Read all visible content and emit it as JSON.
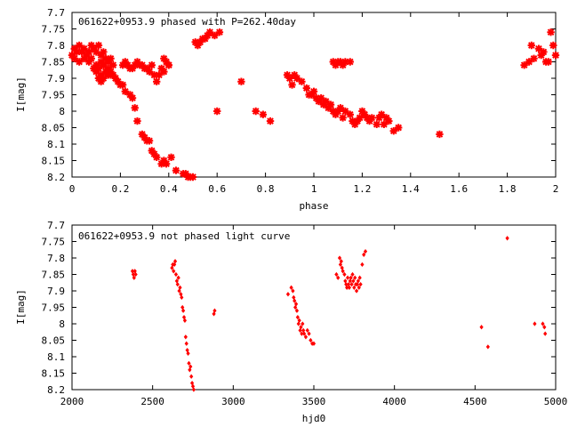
{
  "colors": {
    "points": "#ff0000",
    "axes": "#000000",
    "background": "#ffffff"
  },
  "chart_data": [
    {
      "type": "scatter",
      "title": "061622+0953.9 phased with P=262.40day",
      "xlabel": "phase",
      "ylabel": "I[mag]",
      "xlim": [
        0,
        2
      ],
      "ylim": [
        7.7,
        8.2
      ],
      "y_inverted": true,
      "grid": false,
      "marker": "star",
      "x_ticks": [
        "0",
        "0.2",
        "0.4",
        "0.6",
        "0.8",
        "1",
        "1.2",
        "1.4",
        "1.6",
        "1.8",
        "2"
      ],
      "y_ticks": [
        "7.7",
        "7.75",
        "7.8",
        "7.85",
        "7.9",
        "7.95",
        "8",
        "8.05",
        "8.1",
        "8.15",
        "8.2"
      ],
      "series": [
        {
          "x": [
            0.0,
            0.01,
            0.02,
            0.03,
            0.04,
            0.05,
            0.06,
            0.07,
            0.08,
            0.09,
            0.1,
            0.11,
            0.12,
            0.13,
            0.14,
            0.15,
            0.16,
            0.17,
            0.01,
            0.03,
            0.05,
            0.07,
            0.08,
            0.1,
            0.11,
            0.12,
            0.13,
            0.14,
            0.15,
            0.16,
            0.09,
            0.1,
            0.12,
            0.13,
            0.14,
            0.15,
            0.11,
            0.12,
            0.13,
            0.16,
            0.17,
            0.18,
            0.19,
            0.2,
            0.21,
            0.22,
            0.23,
            0.24,
            0.25,
            0.26,
            0.27,
            0.28,
            0.29,
            0.3,
            0.31,
            0.32,
            0.33,
            0.34,
            0.35,
            0.36,
            0.37,
            0.38,
            0.39,
            0.4,
            0.38,
            0.4,
            0.21,
            0.22,
            0.24,
            0.25,
            0.26,
            0.27,
            0.29,
            0.3,
            0.31,
            0.32,
            0.33,
            0.34,
            0.35,
            0.37,
            0.38,
            0.39,
            0.41,
            0.43,
            0.46,
            0.47,
            0.48,
            0.49,
            0.5,
            0.51,
            0.52,
            0.51,
            0.52,
            0.53,
            0.54,
            0.55,
            0.56,
            0.57,
            0.59,
            0.61,
            0.7,
            0.6,
            0.76,
            0.79,
            0.82,
            0.89,
            0.9,
            0.91,
            0.92,
            0.93,
            0.95,
            0.97,
            0.98,
            0.99,
            1.0,
            1.01,
            1.02,
            1.03,
            1.04,
            1.05,
            1.06,
            1.07,
            1.08,
            1.09,
            1.1,
            1.11,
            1.12,
            1.13,
            1.15,
            1.16,
            1.17,
            1.18,
            1.19,
            1.2,
            1.21,
            1.22,
            1.23,
            1.24,
            1.26,
            1.27,
            1.28,
            1.29,
            1.3,
            1.31,
            1.33,
            1.35,
            1.08,
            1.09,
            1.1,
            1.11,
            1.12,
            1.13,
            1.15,
            1.52,
            1.87,
            1.89,
            1.9,
            1.91,
            1.93,
            1.94,
            1.95,
            1.96,
            1.97,
            1.98,
            1.99,
            2.0
          ],
          "y": [
            7.83,
            7.81,
            7.82,
            7.8,
            7.82,
            7.81,
            7.83,
            7.82,
            7.8,
            7.81,
            7.82,
            7.8,
            7.83,
            7.82,
            7.84,
            7.85,
            7.84,
            7.86,
            7.84,
            7.85,
            7.84,
            7.85,
            7.84,
            7.86,
            7.87,
            7.85,
            7.86,
            7.88,
            7.87,
            7.89,
            7.87,
            7.88,
            7.89,
            7.9,
            7.88,
            7.89,
            7.9,
            7.91,
            7.86,
            7.88,
            7.89,
            7.9,
            7.91,
            7.92,
            7.86,
            7.85,
            7.86,
            7.87,
            7.87,
            7.86,
            7.85,
            7.86,
            7.86,
            7.87,
            7.87,
            7.88,
            7.86,
            7.89,
            7.91,
            7.89,
            7.87,
            7.88,
            7.85,
            7.86,
            7.84,
            7.86,
            7.92,
            7.94,
            7.95,
            7.96,
            7.99,
            8.03,
            8.07,
            8.08,
            8.09,
            8.09,
            8.12,
            8.13,
            8.14,
            8.16,
            8.15,
            8.16,
            8.14,
            8.18,
            8.19,
            8.19,
            8.2,
            8.2,
            8.2,
            8.21,
            8.21,
            7.79,
            7.8,
            7.79,
            7.78,
            7.78,
            7.77,
            7.76,
            7.77,
            7.76,
            7.91,
            8.0,
            8.0,
            8.01,
            8.03,
            7.89,
            7.9,
            7.92,
            7.89,
            7.9,
            7.91,
            7.93,
            7.95,
            7.95,
            7.94,
            7.96,
            7.97,
            7.96,
            7.98,
            7.97,
            7.99,
            7.98,
            8.0,
            8.01,
            8.0,
            7.99,
            8.02,
            8.0,
            8.01,
            8.03,
            8.04,
            8.03,
            8.02,
            8.0,
            8.01,
            8.02,
            8.03,
            8.02,
            8.04,
            8.02,
            8.01,
            8.04,
            8.02,
            8.03,
            8.06,
            8.05,
            7.85,
            7.86,
            7.85,
            7.85,
            7.86,
            7.85,
            7.85,
            8.07,
            7.86,
            7.85,
            7.8,
            7.84,
            7.81,
            7.83,
            7.82,
            7.85,
            7.85,
            7.76,
            7.8,
            7.83
          ]
        }
      ]
    },
    {
      "type": "scatter",
      "title": "061622+0953.9 not phased light curve",
      "xlabel": "hjd0",
      "ylabel": "I[mag]",
      "xlim": [
        2000,
        5000
      ],
      "ylim": [
        7.7,
        8.2
      ],
      "y_inverted": true,
      "grid": false,
      "marker": "diamond",
      "x_ticks": [
        "2000",
        "2500",
        "3000",
        "3500",
        "4000",
        "4500",
        "5000"
      ],
      "y_ticks": [
        "7.7",
        "7.75",
        "7.8",
        "7.85",
        "7.9",
        "7.95",
        "8",
        "8.05",
        "8.1",
        "8.15",
        "8.2"
      ],
      "series": [
        {
          "x": [
            2375,
            2380,
            2385,
            2390,
            2395,
            2620,
            2625,
            2630,
            2635,
            2640,
            2645,
            2650,
            2655,
            2660,
            2665,
            2670,
            2675,
            2680,
            2685,
            2690,
            2695,
            2700,
            2705,
            2710,
            2715,
            2720,
            2725,
            2730,
            2735,
            2740,
            2745,
            2750,
            2755,
            2760,
            2880,
            2885,
            3340,
            3360,
            3370,
            3375,
            3380,
            3385,
            3390,
            3395,
            3400,
            3405,
            3410,
            3415,
            3420,
            3425,
            3430,
            3435,
            3440,
            3450,
            3460,
            3470,
            3480,
            3490,
            3500,
            3640,
            3650,
            3660,
            3665,
            3670,
            3675,
            3680,
            3690,
            3695,
            3700,
            3705,
            3710,
            3715,
            3720,
            3725,
            3730,
            3735,
            3740,
            3745,
            3750,
            3755,
            3760,
            3765,
            3770,
            3775,
            3780,
            3785,
            3790,
            3800,
            3810,
            3820,
            4540,
            4580,
            4700,
            4870,
            4920,
            4930,
            4935
          ],
          "y": [
            7.84,
            7.85,
            7.86,
            7.84,
            7.85,
            7.83,
            7.82,
            7.84,
            7.82,
            7.81,
            7.85,
            7.87,
            7.88,
            7.86,
            7.9,
            7.89,
            7.91,
            7.92,
            7.95,
            7.96,
            7.98,
            7.99,
            8.04,
            8.06,
            8.08,
            8.09,
            8.12,
            8.14,
            8.13,
            8.16,
            8.18,
            8.19,
            8.2,
            8.21,
            7.97,
            7.96,
            7.91,
            7.89,
            7.9,
            7.92,
            7.93,
            7.95,
            7.94,
            7.96,
            7.98,
            8.0,
            7.99,
            8.02,
            8.01,
            8.03,
            8.0,
            8.02,
            8.03,
            8.04,
            8.02,
            8.03,
            8.05,
            8.06,
            8.06,
            7.85,
            7.86,
            7.8,
            7.82,
            7.81,
            7.83,
            7.84,
            7.85,
            7.87,
            7.88,
            7.89,
            7.86,
            7.88,
            7.89,
            7.87,
            7.86,
            7.88,
            7.85,
            7.87,
            7.89,
            7.86,
            7.88,
            7.9,
            7.88,
            7.87,
            7.89,
            7.86,
            7.88,
            7.82,
            7.79,
            7.78,
            8.01,
            8.07,
            7.74,
            8.0,
            8.0,
            8.01,
            8.03
          ]
        }
      ]
    }
  ]
}
